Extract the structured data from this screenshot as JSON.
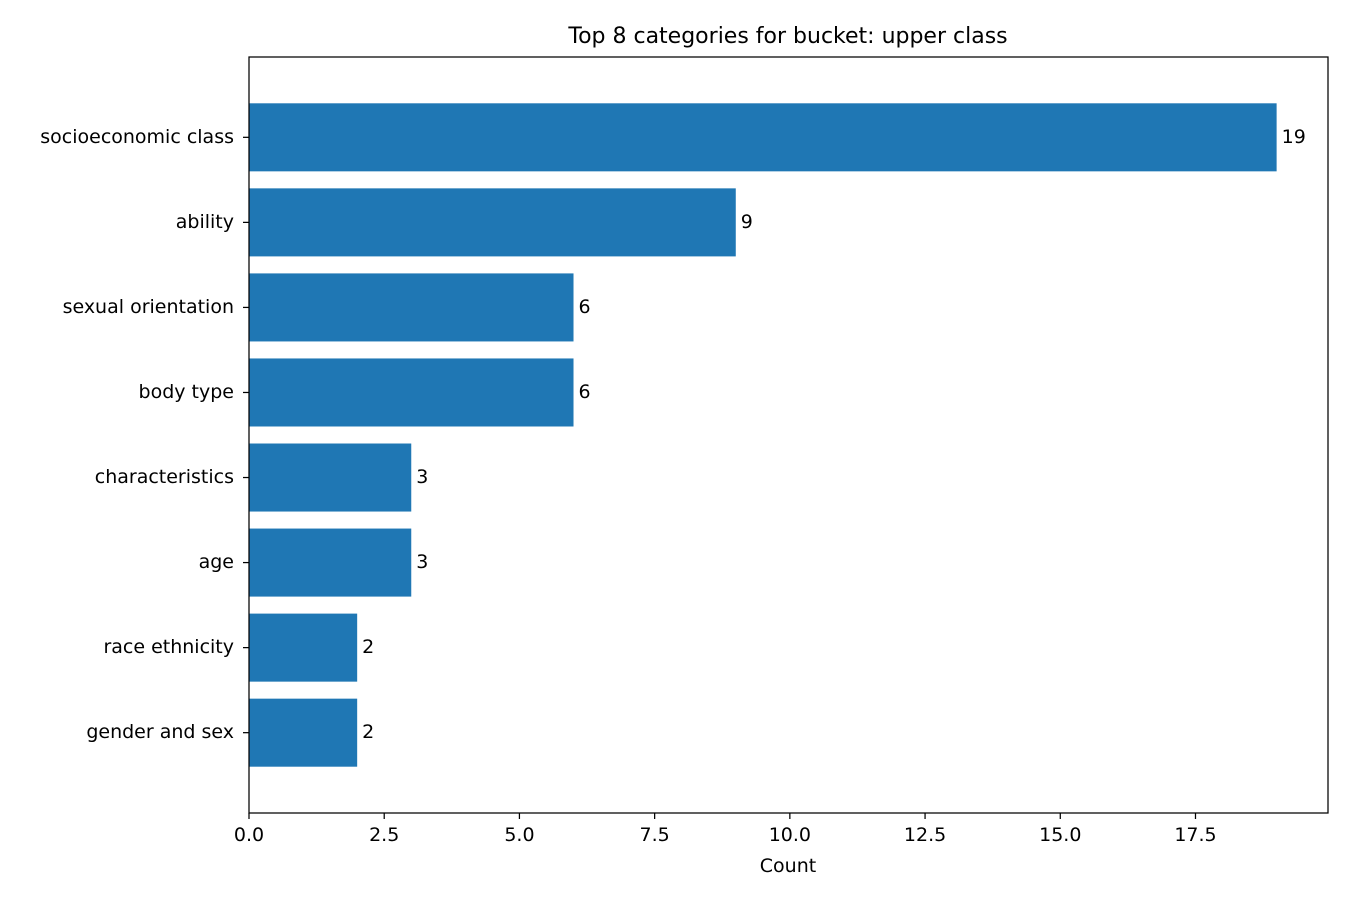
{
  "chart_data": {
    "type": "bar",
    "orientation": "horizontal",
    "title": "Top 8 categories for bucket: upper class",
    "xlabel": "Count",
    "ylabel": "",
    "categories": [
      "socioeconomic class",
      "ability",
      "sexual orientation",
      "body type",
      "characteristics",
      "age",
      "race ethnicity",
      "gender and sex"
    ],
    "values": [
      19,
      9,
      6,
      6,
      3,
      3,
      2,
      2
    ],
    "xlim": [
      0,
      19.95
    ],
    "xticks": [
      0.0,
      2.5,
      5.0,
      7.5,
      10.0,
      12.5,
      15.0,
      17.5
    ],
    "xtick_labels": [
      "0.0",
      "2.5",
      "5.0",
      "7.5",
      "10.0",
      "12.5",
      "15.0",
      "17.5"
    ],
    "data_labels": [
      "19",
      "9",
      "6",
      "6",
      "3",
      "3",
      "2",
      "2"
    ],
    "bar_color": "#1f77b4",
    "grid": false,
    "legend": "none"
  }
}
